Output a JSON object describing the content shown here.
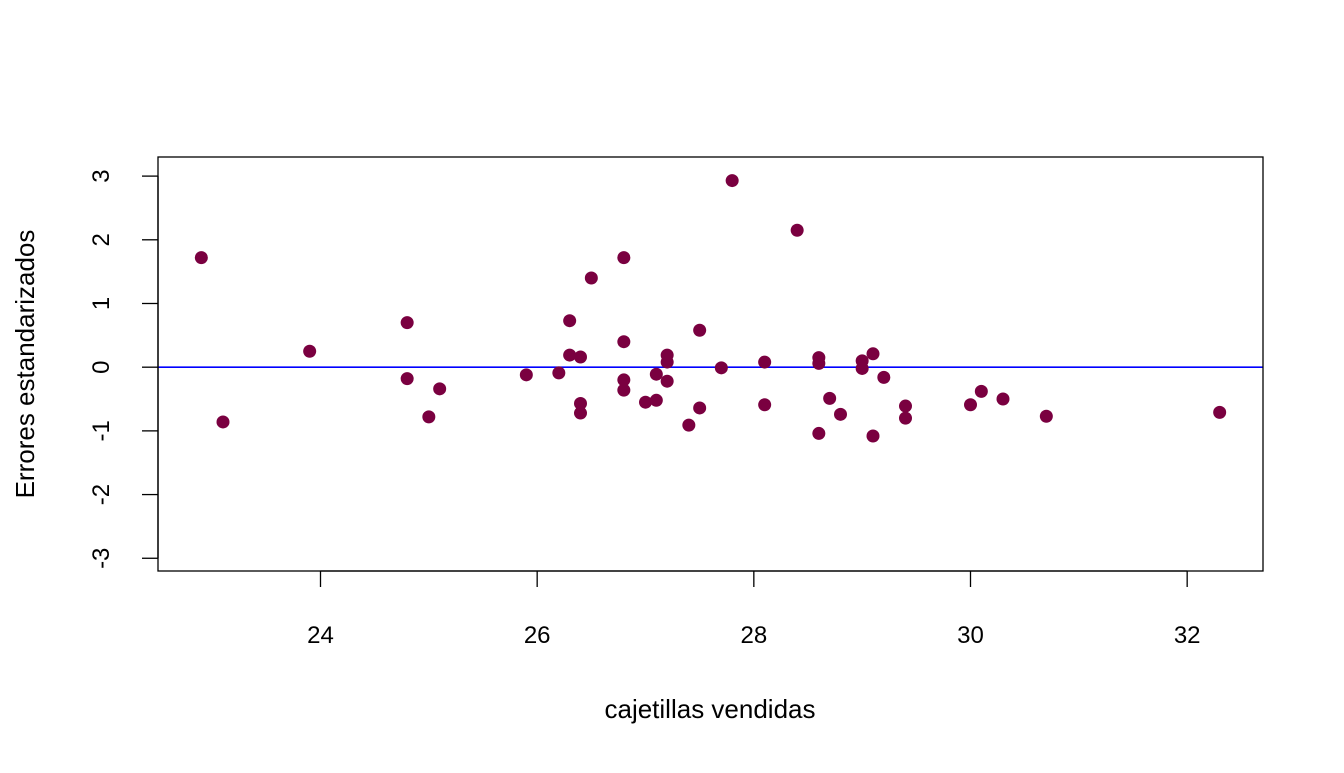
{
  "chart_data": {
    "type": "scatter",
    "title": "",
    "xlabel": "cajetillas vendidas",
    "ylabel": "Errores estandarizados",
    "xlim": [
      22.5,
      32.7
    ],
    "ylim": [
      -3.2,
      3.3
    ],
    "x_ticks": [
      24,
      26,
      28,
      30,
      32
    ],
    "x_tick_labels": [
      "24",
      "26",
      "28",
      "30",
      "32"
    ],
    "y_ticks": [
      -3,
      -2,
      -1,
      0,
      1,
      2,
      3
    ],
    "y_tick_labels": [
      "-3",
      "-2",
      "-1",
      "0",
      "1",
      "2",
      "3"
    ],
    "grid": false,
    "legend": "none",
    "point_color": "#7A0040",
    "reference_line": {
      "y": 0,
      "color": "#0000FF"
    },
    "series": [
      {
        "x": [
          22.9,
          23.1,
          23.9,
          24.8,
          24.8,
          25.0,
          25.1,
          25.9,
          26.2,
          26.3,
          26.3,
          26.4,
          26.4,
          26.4,
          26.5,
          26.8,
          26.8,
          26.8,
          26.8,
          27.0,
          27.1,
          27.1,
          27.2,
          27.2,
          27.2,
          27.4,
          27.5,
          27.5,
          27.7,
          27.8,
          28.1,
          28.1,
          28.4,
          28.6,
          28.6,
          28.6,
          28.7,
          28.8,
          29.0,
          29.0,
          29.1,
          29.1,
          29.2,
          29.4,
          29.4,
          30.0,
          30.1,
          30.3,
          30.7,
          32.3
        ],
        "y": [
          1.72,
          -0.86,
          0.25,
          0.7,
          -0.18,
          -0.78,
          -0.34,
          -0.12,
          -0.09,
          0.73,
          0.19,
          0.16,
          -0.57,
          -0.72,
          1.4,
          1.72,
          0.4,
          -0.2,
          -0.36,
          -0.55,
          -0.11,
          -0.52,
          0.19,
          0.08,
          -0.22,
          -0.91,
          0.58,
          -0.64,
          -0.01,
          2.93,
          0.08,
          -0.59,
          2.15,
          0.15,
          0.06,
          -1.04,
          -0.49,
          -0.74,
          0.1,
          -0.02,
          0.21,
          -1.08,
          -0.16,
          -0.61,
          -0.8,
          -0.59,
          -0.38,
          -0.5,
          -0.77,
          -0.71
        ]
      }
    ]
  }
}
